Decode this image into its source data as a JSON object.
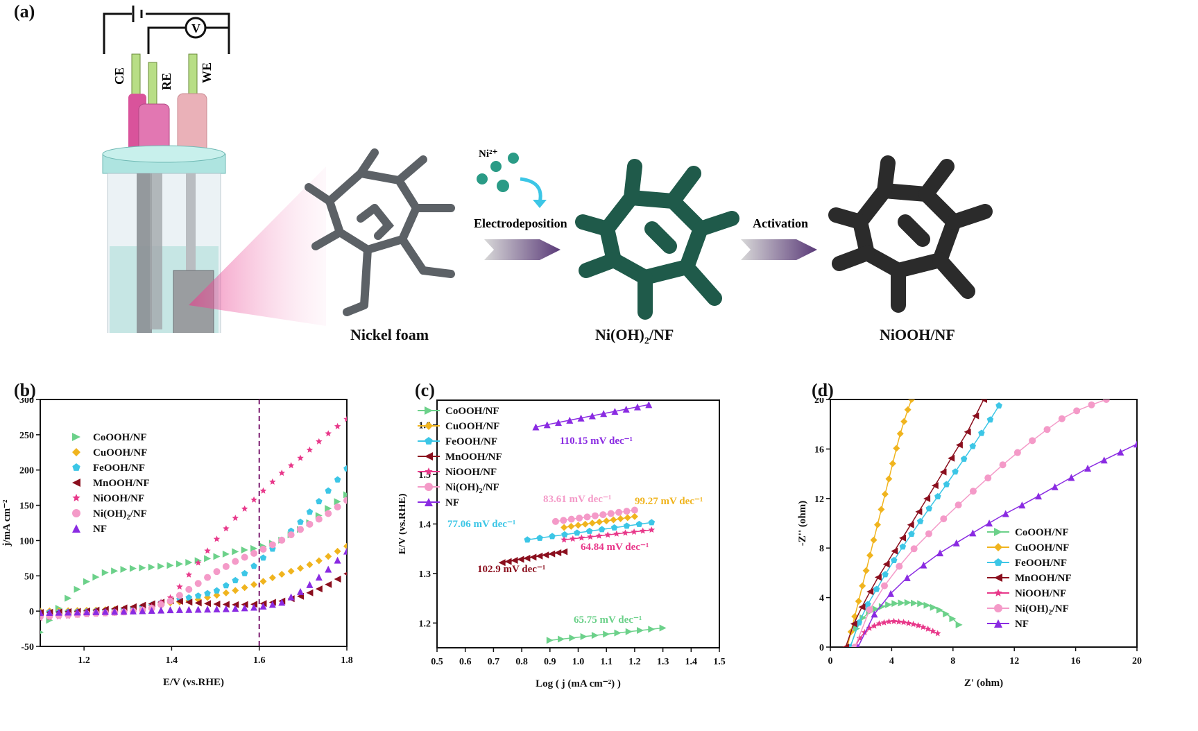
{
  "panel_a": {
    "label": "(a)",
    "electrodes": {
      "ce": "CE",
      "re": "RE",
      "we": "WE",
      "meter": "V"
    },
    "ion_label": "Ni²⁺",
    "step1_label": "Electrodeposition",
    "step2_label": "Activation",
    "captions": {
      "nickel_foam": "Nickel foam",
      "nioh2_main": "Ni(OH)",
      "nioh2_sub": "2",
      "nioh2_tail": "/NF",
      "niooh": "NiOOH/NF"
    },
    "colors": {
      "foam": "#555a5e",
      "nioh2": "#1f5a4a",
      "niooh": "#2b2b2b",
      "arrow": "#5a3a78"
    }
  },
  "series_colors": {
    "CoOOH/NF": "#6cd18a",
    "CuOOH/NF": "#f0b41e",
    "FeOOH/NF": "#3cc6e6",
    "MnOOH/NF": "#8b0f1e",
    "NiOOH/NF": "#e8388a",
    "Ni(OH)2/NF": "#f49ac8",
    "NF": "#8a2be2"
  },
  "chart_data": [
    {
      "panel": "(b)",
      "type": "scatter",
      "xlabel": "E/V (vs.RHE)",
      "ylabel": "j/mA cm⁻²",
      "xlim": [
        1.1,
        1.8
      ],
      "ylim": [
        -50,
        300
      ],
      "xticks": [
        "1.2",
        "1.4",
        "1.6",
        "1.8"
      ],
      "yticks": [
        "-50",
        "0",
        "50",
        "100",
        "150",
        "200",
        "250",
        "300"
      ],
      "vline": 1.6,
      "legend_position": "top-left",
      "series": [
        {
          "name": "CoOOH/NF",
          "marker": "triangle-right",
          "x": [
            1.1,
            1.15,
            1.2,
            1.25,
            1.3,
            1.35,
            1.4,
            1.45,
            1.5,
            1.55,
            1.6,
            1.65,
            1.7,
            1.75,
            1.8
          ],
          "y": [
            -30,
            10,
            40,
            55,
            60,
            62,
            65,
            70,
            77,
            85,
            90,
            100,
            118,
            142,
            165
          ]
        },
        {
          "name": "CuOOH/NF",
          "marker": "diamond",
          "x": [
            1.1,
            1.2,
            1.3,
            1.35,
            1.4,
            1.45,
            1.5,
            1.55,
            1.6,
            1.65,
            1.7,
            1.75,
            1.8
          ],
          "y": [
            0,
            1,
            3,
            8,
            12,
            15,
            22,
            30,
            40,
            52,
            62,
            75,
            92
          ]
        },
        {
          "name": "FeOOH/NF",
          "marker": "pentagon",
          "x": [
            1.1,
            1.2,
            1.3,
            1.35,
            1.4,
            1.45,
            1.5,
            1.55,
            1.6,
            1.65,
            1.7,
            1.75,
            1.8
          ],
          "y": [
            -2,
            -1,
            2,
            8,
            15,
            20,
            28,
            45,
            70,
            100,
            130,
            165,
            202
          ]
        },
        {
          "name": "MnOOH/NF",
          "marker": "triangle-left",
          "x": [
            1.1,
            1.2,
            1.3,
            1.35,
            1.4,
            1.45,
            1.5,
            1.55,
            1.6,
            1.65,
            1.7,
            1.75,
            1.8
          ],
          "y": [
            -2,
            0,
            5,
            10,
            15,
            12,
            10,
            9,
            10,
            14,
            22,
            35,
            53
          ]
        },
        {
          "name": "NiOOH/NF",
          "marker": "star",
          "x": [
            1.1,
            1.2,
            1.3,
            1.35,
            1.4,
            1.45,
            1.5,
            1.55,
            1.6,
            1.65,
            1.7,
            1.75,
            1.8
          ],
          "y": [
            -10,
            -5,
            -2,
            5,
            20,
            60,
            100,
            135,
            165,
            195,
            220,
            248,
            272
          ]
        },
        {
          "name": "Ni(OH)2/NF",
          "marker": "circle",
          "x": [
            1.1,
            1.2,
            1.3,
            1.35,
            1.4,
            1.45,
            1.5,
            1.55,
            1.6,
            1.65,
            1.7,
            1.75,
            1.8
          ],
          "y": [
            -8,
            -4,
            -1,
            3,
            15,
            35,
            55,
            72,
            85,
            100,
            118,
            135,
            157
          ]
        },
        {
          "name": "NF",
          "marker": "triangle-up",
          "x": [
            1.1,
            1.2,
            1.3,
            1.4,
            1.5,
            1.55,
            1.6,
            1.65,
            1.7,
            1.75,
            1.8
          ],
          "y": [
            -2,
            -1,
            0,
            2,
            3,
            4,
            6,
            12,
            30,
            55,
            85
          ]
        }
      ]
    },
    {
      "panel": "(c)",
      "type": "scatter",
      "xlabel": "Log ( j (mA cm⁻²) )",
      "ylabel": "E/V (vs.RHE)",
      "xlim": [
        0.5,
        1.5
      ],
      "ylim": [
        1.15,
        1.65
      ],
      "xticks": [
        "0.5",
        "0.6",
        "0.7",
        "0.8",
        "0.9",
        "1.0",
        "1.1",
        "1.2",
        "1.3",
        "1.4",
        "1.5"
      ],
      "yticks": [
        "1.2",
        "1.3",
        "1.4",
        "1.5",
        "1.6"
      ],
      "legend_position": "top-left",
      "series": [
        {
          "name": "CoOOH/NF",
          "marker": "triangle-right",
          "x": [
            0.9,
            1.3
          ],
          "y": [
            1.165,
            1.19
          ],
          "slope_label": "65.75 mV dec⁻¹"
        },
        {
          "name": "CuOOH/NF",
          "marker": "diamond",
          "x": [
            0.95,
            1.2
          ],
          "y": [
            1.393,
            1.415
          ],
          "slope_label": "99.27 mV dec⁻¹"
        },
        {
          "name": "FeOOH/NF",
          "marker": "pentagon",
          "x": [
            0.82,
            1.26
          ],
          "y": [
            1.368,
            1.403
          ],
          "slope_label": "77.06 mV dec⁻¹"
        },
        {
          "name": "MnOOH/NF",
          "marker": "triangle-left",
          "x": [
            0.73,
            0.95
          ],
          "y": [
            1.322,
            1.344
          ],
          "slope_label": "102.9 mV dec⁻¹"
        },
        {
          "name": "NiOOH/NF",
          "marker": "star",
          "x": [
            0.95,
            1.26
          ],
          "y": [
            1.368,
            1.388
          ],
          "slope_label": "64.84 mV dec⁻¹"
        },
        {
          "name": "Ni(OH)2/NF",
          "marker": "circle",
          "x": [
            0.92,
            1.2
          ],
          "y": [
            1.405,
            1.428
          ],
          "slope_label": "83.61 mV dec⁻¹"
        },
        {
          "name": "NF",
          "marker": "triangle-up",
          "x": [
            0.85,
            1.25
          ],
          "y": [
            1.596,
            1.641
          ],
          "slope_label": "110.15 mV dec⁻¹"
        }
      ]
    },
    {
      "panel": "(d)",
      "type": "scatter",
      "xlabel": "Z' (ohm)",
      "ylabel": "-Z'' (ohm)",
      "xlim": [
        0,
        20
      ],
      "ylim": [
        0,
        20
      ],
      "xticks": [
        "0",
        "4",
        "8",
        "12",
        "16",
        "20"
      ],
      "yticks": [
        "0",
        "4",
        "8",
        "12",
        "16",
        "20"
      ],
      "legend_position": "bottom-right",
      "series": [
        {
          "name": "CoOOH/NF",
          "marker": "triangle-right",
          "x": [
            1.3,
            1.6,
            2.0,
            2.5,
            3.2,
            4.0,
            5.0,
            6.0,
            7.0,
            7.8,
            8.4
          ],
          "y": [
            0,
            1.2,
            2.2,
            2.8,
            3.2,
            3.5,
            3.6,
            3.5,
            3.1,
            2.5,
            1.8
          ]
        },
        {
          "name": "CuOOH/NF",
          "marker": "diamond",
          "x": [
            1.1,
            1.5,
            2.0,
            2.5,
            3.0,
            3.5,
            4.0,
            4.5,
            5.0,
            5.3
          ],
          "y": [
            0,
            2.0,
            4.5,
            7.0,
            9.5,
            12.0,
            14.5,
            17.0,
            19.0,
            20.0
          ]
        },
        {
          "name": "FeOOH/NF",
          "marker": "pentagon",
          "x": [
            1.3,
            1.8,
            2.5,
            3.5,
            4.5,
            5.5,
            6.5,
            7.5,
            8.5,
            9.5,
            10.5,
            11.0
          ],
          "y": [
            0,
            1.8,
            3.6,
            5.7,
            7.7,
            9.5,
            11.3,
            13.0,
            14.8,
            16.6,
            18.5,
            19.5
          ]
        },
        {
          "name": "MnOOH/NF",
          "marker": "triangle-left",
          "x": [
            1.0,
            1.5,
            2.2,
            3.0,
            4.0,
            5.0,
            6.0,
            7.0,
            8.0,
            9.0,
            10.0
          ],
          "y": [
            0,
            1.8,
            3.6,
            5.4,
            7.4,
            9.4,
            11.4,
            13.4,
            15.5,
            17.5,
            20.0
          ]
        },
        {
          "name": "NiOOH/NF",
          "marker": "star",
          "x": [
            1.6,
            2.0,
            2.5,
            3.2,
            4.0,
            4.8,
            5.6,
            6.3,
            7.0
          ],
          "y": [
            0,
            0.9,
            1.5,
            1.9,
            2.1,
            2.0,
            1.8,
            1.5,
            1.1
          ]
        },
        {
          "name": "Ni(OH)2/NF",
          "marker": "circle",
          "x": [
            1.6,
            2.2,
            3.0,
            4.0,
            5.5,
            7.5,
            9.5,
            11.5,
            13.5,
            15.5,
            17.5,
            18.0
          ],
          "y": [
            0,
            2.2,
            4.0,
            5.8,
            8.0,
            10.5,
            12.8,
            15.0,
            17.0,
            18.8,
            19.8,
            20.0
          ]
        },
        {
          "name": "NF",
          "marker": "triangle-up",
          "x": [
            1.8,
            2.5,
            3.5,
            5.0,
            7.0,
            9.0,
            11.0,
            13.0,
            15.0,
            17.0,
            19.0,
            20.0
          ],
          "y": [
            0,
            2.0,
            3.8,
            5.6,
            7.5,
            9.0,
            10.5,
            11.8,
            13.2,
            14.6,
            15.8,
            16.4
          ]
        }
      ]
    }
  ]
}
